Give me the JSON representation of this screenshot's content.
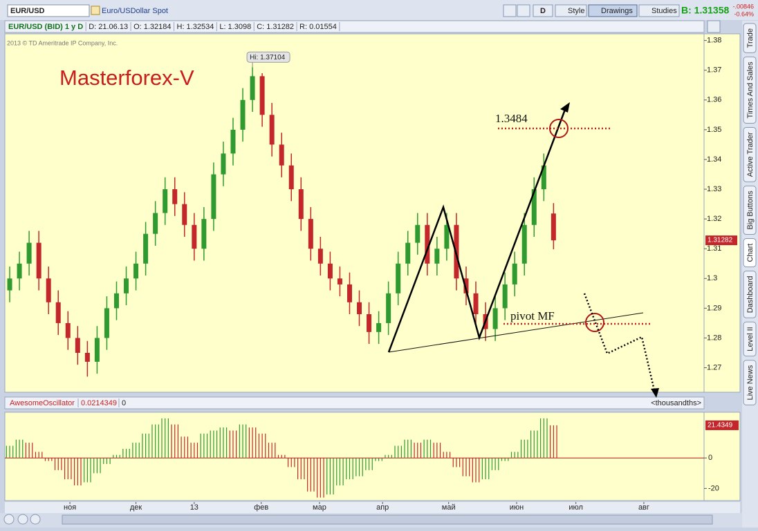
{
  "toolbar": {
    "symbol": "EUR/USD",
    "description": "Euro/USDollar Spot",
    "period_button": "D",
    "style": "Style",
    "drawings": "Drawings",
    "studies": "Studies",
    "bid": "B: 1.31358",
    "change": "-.00846",
    "change_pct": "-0.64%"
  },
  "header": {
    "instrument": "EUR/USD (BID) 1 y D",
    "date": "D: 21.06.13",
    "open": "O: 1.32184",
    "high": "H: 1.32534",
    "low": "L: 1.3098",
    "close": "C: 1.31282",
    "range": "R: 0.01554"
  },
  "copyright": "2013 © TD Ameritrade IP Company, Inc.",
  "side_tabs": [
    "Trade",
    "Times And Sales",
    "Active Trader",
    "Big Buttons",
    "Chart",
    "Dashboard",
    "Level II",
    "Live News"
  ],
  "annotations": {
    "brand": "Masterforex-V",
    "target": "1.3484",
    "pivot": "pivot MF"
  },
  "oscillator_header": {
    "name": "AwesomeOscillator",
    "value": "0.0214349",
    "zero": "0",
    "units": "<thousandths>"
  },
  "chart_data": [
    {
      "type": "candlestick",
      "hi_label": "Hi: 1.37104",
      "up_color": "#2f9a2f",
      "down_color": "#c3262b",
      "xlim": [
        -0.5,
        71.5
      ],
      "ylim": [
        1.262,
        1.382
      ],
      "yticks": [
        1.38,
        1.37,
        1.36,
        1.35,
        1.34,
        1.33,
        1.32,
        1.31,
        1.3,
        1.29,
        1.28,
        1.27
      ],
      "open": [
        1.296,
        1.3,
        1.305,
        1.312,
        1.3,
        1.292,
        1.285,
        1.28,
        1.275,
        1.272,
        1.28,
        1.29,
        1.295,
        1.3,
        1.305,
        1.315,
        1.322,
        1.33,
        1.325,
        1.318,
        1.31,
        1.32,
        1.335,
        1.342,
        1.35,
        1.36,
        1.368,
        1.355,
        1.345,
        1.338,
        1.33,
        1.32,
        1.31,
        1.305,
        1.3,
        1.298,
        1.292,
        1.288,
        1.282,
        1.285,
        1.295,
        1.305,
        1.312,
        1.318,
        1.305,
        1.31,
        1.318,
        1.3,
        1.295,
        1.288,
        1.283,
        1.29,
        1.298,
        1.305,
        1.318,
        1.33,
        1.32184
      ],
      "high": [
        1.304,
        1.309,
        1.316,
        1.316,
        1.304,
        1.296,
        1.289,
        1.284,
        1.279,
        1.284,
        1.294,
        1.299,
        1.304,
        1.309,
        1.319,
        1.326,
        1.334,
        1.334,
        1.329,
        1.322,
        1.324,
        1.339,
        1.346,
        1.354,
        1.364,
        1.37104,
        1.369,
        1.359,
        1.349,
        1.342,
        1.334,
        1.324,
        1.314,
        1.309,
        1.304,
        1.302,
        1.296,
        1.292,
        1.289,
        1.299,
        1.309,
        1.316,
        1.322,
        1.322,
        1.314,
        1.322,
        1.322,
        1.304,
        1.299,
        1.292,
        1.294,
        1.302,
        1.309,
        1.322,
        1.334,
        1.342,
        1.32534
      ],
      "low": [
        1.292,
        1.296,
        1.301,
        1.296,
        1.288,
        1.281,
        1.276,
        1.271,
        1.267,
        1.268,
        1.276,
        1.286,
        1.291,
        1.296,
        1.301,
        1.311,
        1.318,
        1.321,
        1.314,
        1.306,
        1.306,
        1.316,
        1.331,
        1.338,
        1.346,
        1.356,
        1.351,
        1.341,
        1.334,
        1.326,
        1.316,
        1.306,
        1.301,
        1.296,
        1.294,
        1.288,
        1.284,
        1.278,
        1.278,
        1.281,
        1.291,
        1.301,
        1.308,
        1.301,
        1.301,
        1.306,
        1.296,
        1.291,
        1.284,
        1.279,
        1.279,
        1.286,
        1.294,
        1.301,
        1.314,
        1.326,
        1.3098
      ],
      "close": [
        1.3,
        1.305,
        1.312,
        1.3,
        1.292,
        1.285,
        1.28,
        1.275,
        1.272,
        1.28,
        1.29,
        1.295,
        1.3,
        1.305,
        1.315,
        1.322,
        1.33,
        1.325,
        1.318,
        1.31,
        1.32,
        1.335,
        1.342,
        1.35,
        1.36,
        1.368,
        1.355,
        1.345,
        1.338,
        1.33,
        1.32,
        1.31,
        1.305,
        1.3,
        1.298,
        1.292,
        1.288,
        1.282,
        1.285,
        1.295,
        1.305,
        1.312,
        1.318,
        1.305,
        1.31,
        1.318,
        1.3,
        1.295,
        1.288,
        1.283,
        1.29,
        1.298,
        1.305,
        1.318,
        1.33,
        1.338,
        1.31282
      ]
    },
    {
      "type": "bar",
      "up_color": "#2f9a2f",
      "down_color": "#c3262b",
      "xlim": [
        -0.5,
        71.5
      ],
      "ylim": [
        -28,
        30
      ],
      "yticks": [
        0,
        -20
      ],
      "xticks": [
        {
          "value": 6.2,
          "label": "ноя"
        },
        {
          "value": 13.0,
          "label": "дек"
        },
        {
          "value": 19.0,
          "label": "13"
        },
        {
          "value": 25.9,
          "label": "фев"
        },
        {
          "value": 31.9,
          "label": "мар"
        },
        {
          "value": 38.4,
          "label": "апр"
        },
        {
          "value": 45.2,
          "label": "май"
        },
        {
          "value": 52.2,
          "label": "июн"
        },
        {
          "value": 58.3,
          "label": "июл"
        },
        {
          "value": 65.3,
          "label": "авг"
        }
      ],
      "values": [
        8,
        12,
        10,
        4,
        -2,
        -8,
        -14,
        -18,
        -16,
        -10,
        -4,
        2,
        6,
        10,
        16,
        22,
        26,
        22,
        14,
        10,
        16,
        18,
        20,
        18,
        22,
        20,
        16,
        10,
        2,
        -6,
        -14,
        -22,
        -26,
        -24,
        -18,
        -14,
        -12,
        -8,
        -2,
        2,
        8,
        12,
        10,
        12,
        10,
        4,
        -6,
        -12,
        -16,
        -14,
        -8,
        -2,
        4,
        12,
        18,
        26,
        21.4349
      ]
    }
  ]
}
